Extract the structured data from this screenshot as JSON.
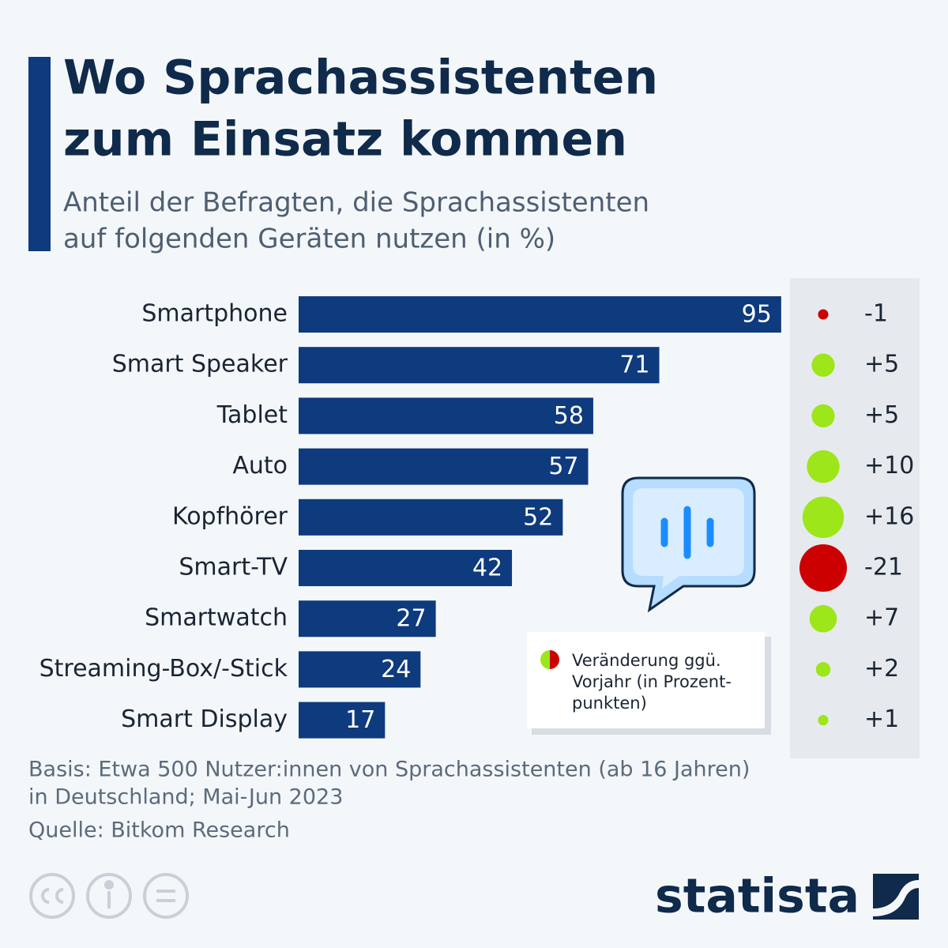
{
  "chart_data": {
    "type": "bar",
    "title": [
      "Wo Sprachassistenten",
      "zum Einsatz kommen"
    ],
    "subtitle": [
      "Anteil der Befragten, die Sprachassistenten",
      "auf folgenden Geräten nutzen (in %)"
    ],
    "categories": [
      "Smartphone",
      "Smart Speaker",
      "Tablet",
      "Auto",
      "Kopfhörer",
      "Smart-TV",
      "Smartwatch",
      "Streaming-Box/-Stick",
      "Smart Display"
    ],
    "values": [
      95,
      71,
      58,
      57,
      52,
      42,
      27,
      24,
      17
    ],
    "color": "#0e3a7e",
    "change": {
      "values": [
        -1,
        5,
        5,
        10,
        16,
        -21,
        7,
        2,
        1
      ],
      "value_labels": [
        "-1",
        "+5",
        "+5",
        "+10",
        "+16",
        "-21",
        "+7",
        "+2",
        "+1"
      ],
      "positive_color": "#9ce619",
      "negative_color": "#cc0000",
      "legend": [
        "Veränderung ggü.",
        "Vorjahr (in Prozent-",
        "punkten)"
      ]
    },
    "notes": [
      "Basis: Etwa 500 Nutzer:innen von Sprachassistenten (ab 16 Jahren)",
      "in Deutschland; Mai-Jun 2023"
    ],
    "source": "Quelle: Bitkom Research",
    "brand": "statista"
  }
}
